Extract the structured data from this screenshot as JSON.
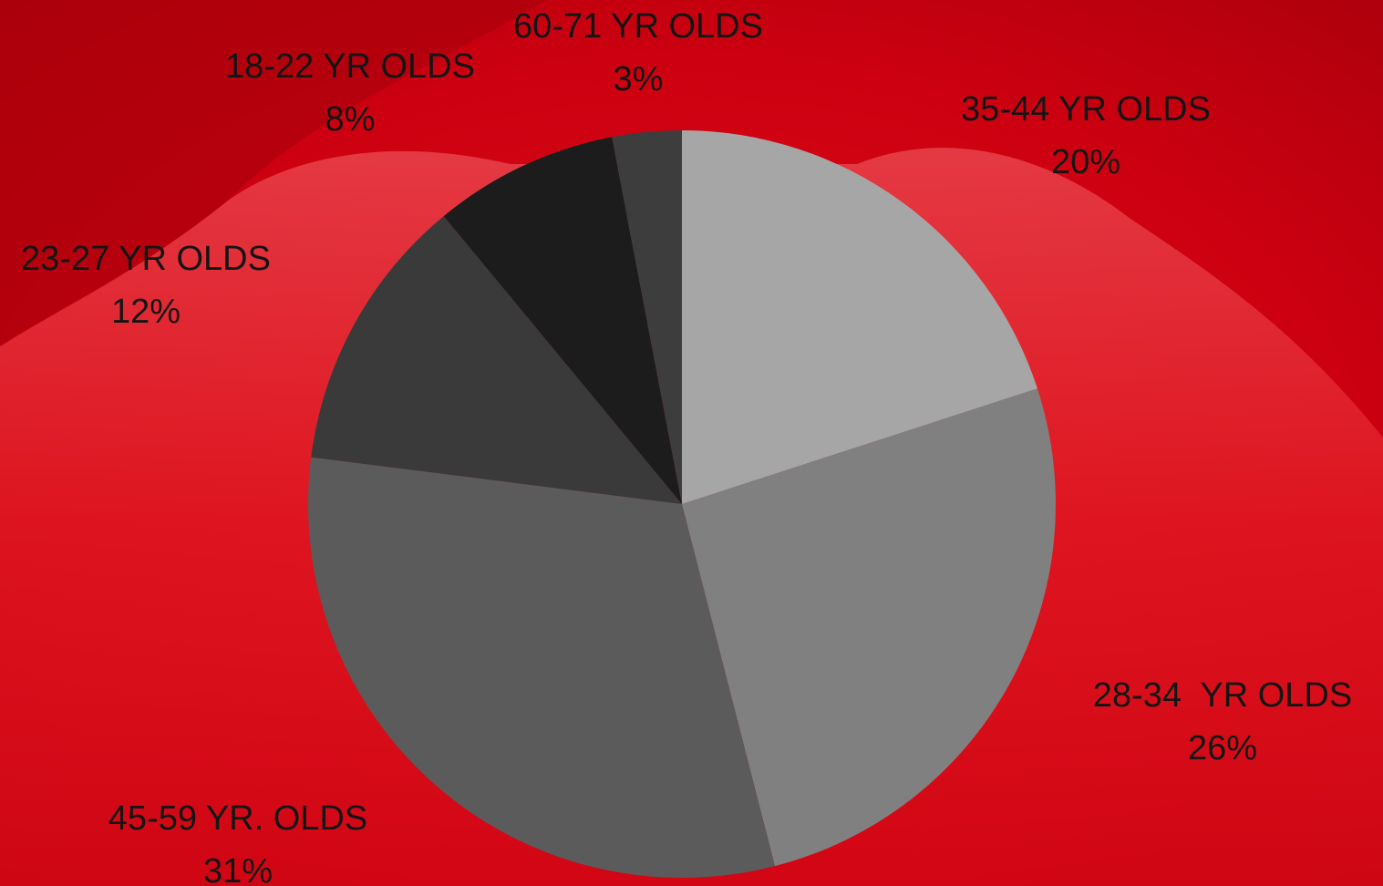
{
  "chart_data": {
    "type": "pie",
    "categories": [
      "35-44 YR OLDS",
      "28-34  YR OLDS",
      "45-59 YR. OLDS",
      "23-27 YR OLDS",
      "18-22 YR OLDS",
      "60-71 YR OLDS"
    ],
    "values": [
      20,
      26,
      31,
      12,
      8,
      3
    ],
    "value_labels": [
      "20%",
      "26%",
      "31%",
      "12%",
      "8%",
      "3%"
    ],
    "colors": [
      "#a6a6a6",
      "#808080",
      "#5b5b5b",
      "#3a3a3a",
      "#1c1c1c",
      "#3d3d3d"
    ]
  }
}
